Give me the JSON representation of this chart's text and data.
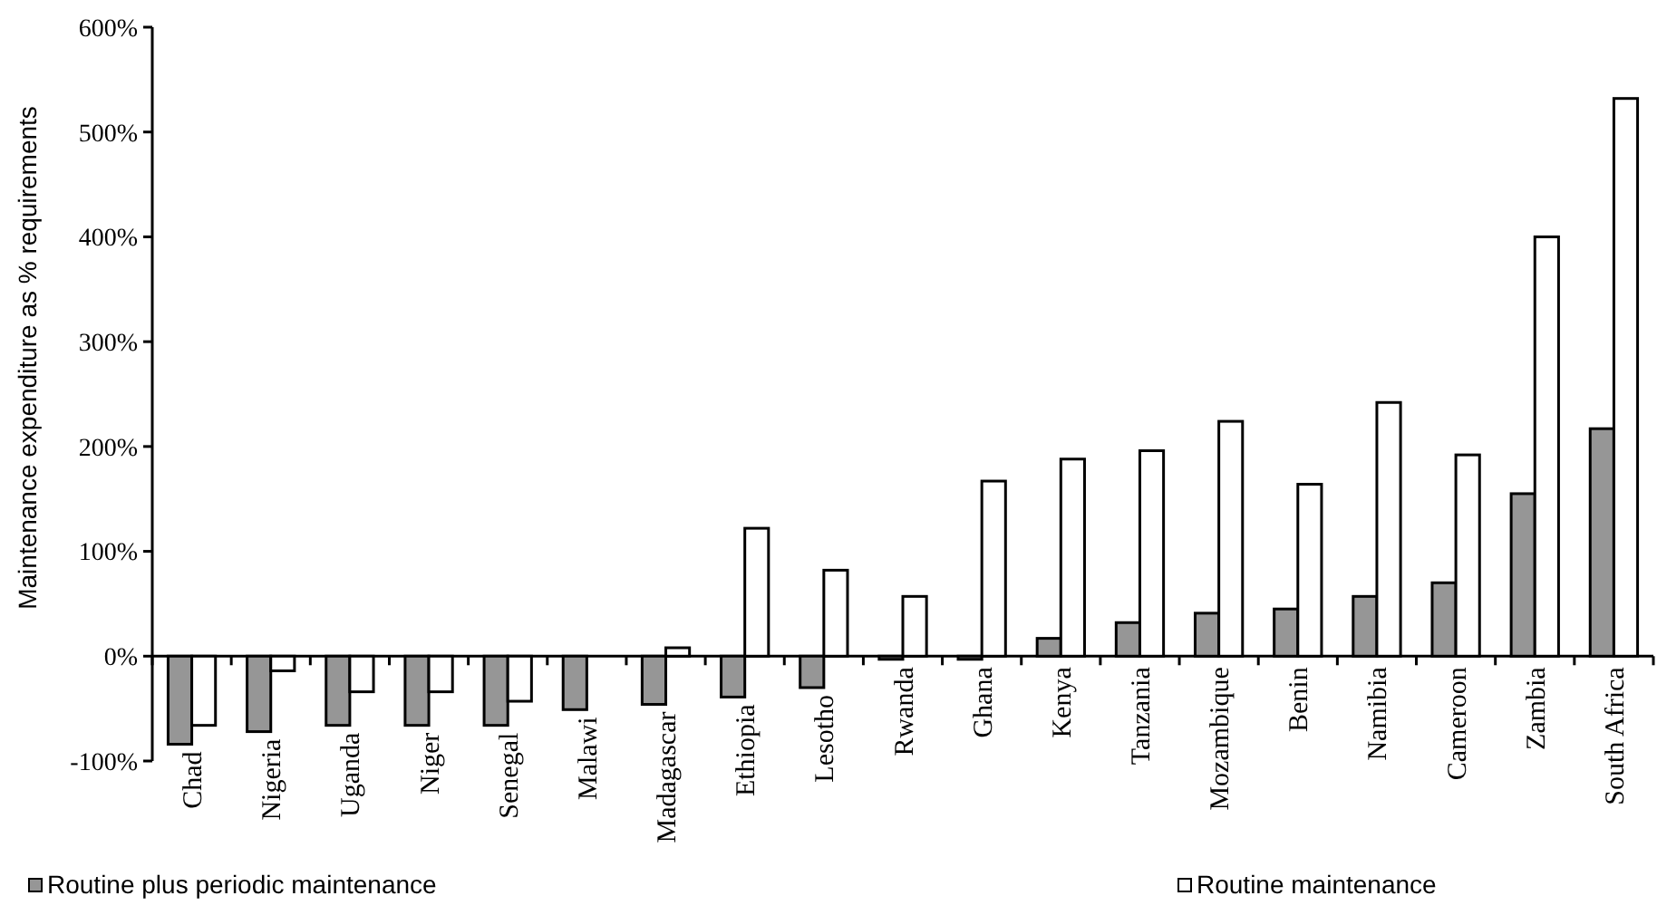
{
  "chart_data": {
    "type": "bar",
    "ylabel": "Maintenance expenditure as % requirements",
    "categories": [
      "Chad",
      "Nigeria",
      "Uganda",
      "Niger",
      "Senegal",
      "Malawi",
      "Madagascar",
      "Ethiopia",
      "Lesotho",
      "Rwanda",
      "Ghana",
      "Kenya",
      "Tanzania",
      "Mozambique",
      "Benin",
      "Namibia",
      "Cameroon",
      "Zambia",
      "South Africa"
    ],
    "series": [
      {
        "name": "Routine plus periodic maintenance",
        "color": "#969696",
        "values": [
          -84,
          -72,
          -66,
          -66,
          -66,
          -51,
          -46,
          -39,
          -30,
          -3,
          -3,
          17,
          32,
          41,
          45,
          57,
          70,
          155,
          217
        ]
      },
      {
        "name": "Routine maintenance",
        "color": "#ffffff",
        "values": [
          -66,
          -14,
          -34,
          -34,
          -43,
          0,
          8,
          122,
          82,
          57,
          167,
          188,
          196,
          224,
          164,
          242,
          192,
          400,
          532
        ]
      }
    ],
    "ylim": [
      -100,
      600
    ],
    "yticks": [
      {
        "value": -100,
        "label": "-100%"
      },
      {
        "value": 0,
        "label": "0%"
      },
      {
        "value": 100,
        "label": "100%"
      },
      {
        "value": 200,
        "label": "200%"
      },
      {
        "value": 300,
        "label": "300%"
      },
      {
        "value": 400,
        "label": "400%"
      },
      {
        "value": 500,
        "label": "500%"
      },
      {
        "value": 600,
        "label": "600%"
      }
    ],
    "grid": false,
    "legend": "bottom"
  }
}
